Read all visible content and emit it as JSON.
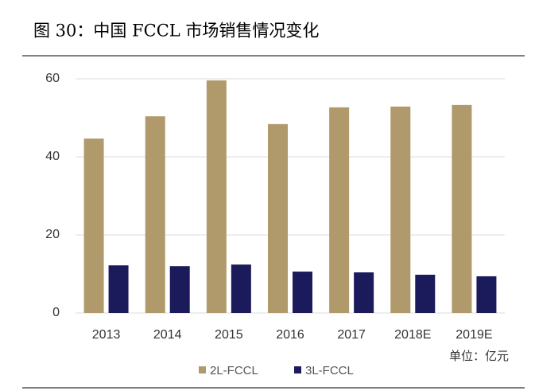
{
  "chart_data": {
    "type": "bar",
    "title": "图 30：中国 FCCL 市场销售情况变化",
    "categories": [
      "2013",
      "2014",
      "2015",
      "2016",
      "2017",
      "2018E",
      "2019E"
    ],
    "series": [
      {
        "name": "2L-FCCL",
        "color": "#b09a6b",
        "values": [
          44.7,
          50.4,
          59.6,
          48.4,
          52.7,
          52.9,
          53.3
        ]
      },
      {
        "name": "3L-FCCL",
        "color": "#1b1b5c",
        "values": [
          12.2,
          12.0,
          12.4,
          10.6,
          10.4,
          9.8,
          9.4
        ]
      }
    ],
    "annotation": "单位：亿元",
    "ylim": [
      0,
      60
    ],
    "yticks": [
      0,
      20,
      40,
      60
    ],
    "grid": true,
    "legend": "bottom"
  }
}
